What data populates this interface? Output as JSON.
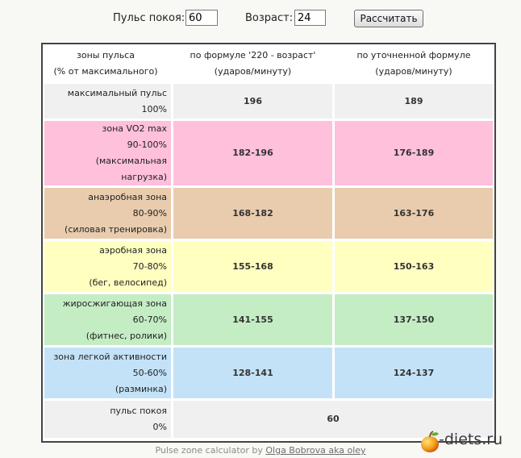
{
  "controls": {
    "pulse_label": "Пульс покоя:",
    "pulse_value": "60",
    "age_label": "Возраст:",
    "age_value": "24",
    "calc_button": "Рассчитать"
  },
  "table": {
    "headers": [
      [
        "зоны пульса",
        "(% от максимального)"
      ],
      [
        "по формуле '220 - возраст'",
        "(ударов/минуту)"
      ],
      [
        "по уточненной формуле",
        "(ударов/минуту)"
      ]
    ],
    "rows": [
      {
        "zone": [
          "максимальный пульс",
          "100%"
        ],
        "formula_220": "196",
        "refined": "189",
        "color": "#f0f0f0"
      },
      {
        "zone": [
          "зона VO2 max",
          "90-100%",
          "(максимальная",
          "нагрузка)"
        ],
        "formula_220": "182-196",
        "refined": "176-189",
        "color": "#ffc0dc"
      },
      {
        "zone": [
          "анаэробная зона",
          "80-90%",
          "(силовая тренировка)"
        ],
        "formula_220": "168-182",
        "refined": "163-176",
        "color": "#e9ccae"
      },
      {
        "zone": [
          "аэробная зона",
          "70-80%",
          "(бег, велосипед)"
        ],
        "formula_220": "155-168",
        "refined": "150-163",
        "color": "#ffffc0"
      },
      {
        "zone": [
          "жиросжигающая зона",
          "60-70%",
          "(фитнес, ролики)"
        ],
        "formula_220": "141-155",
        "refined": "137-150",
        "color": "#c4edc4"
      },
      {
        "zone": [
          "зона легкой активности",
          "50-60%",
          "(разминка)"
        ],
        "formula_220": "128-141",
        "refined": "124-137",
        "color": "#c4e2f7"
      },
      {
        "zone": [
          "пульс покоя",
          "0%"
        ],
        "resting_value": "60",
        "color": "#f0f0f0"
      }
    ]
  },
  "footer": {
    "prefix": "Pulse zone calculator by ",
    "link": "Olga Bobrova aka oley"
  },
  "watermark": {
    "text": "-diets.ru",
    "icon": "apple-icon"
  }
}
